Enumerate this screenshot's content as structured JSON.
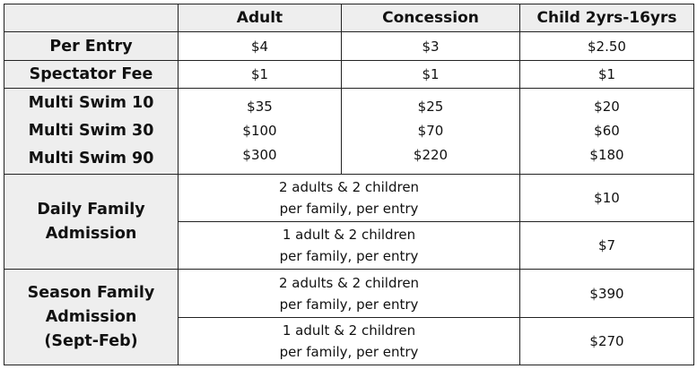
{
  "header": {
    "corner": "",
    "columns": [
      "Adult",
      "Concession",
      "Child 2yrs-16yrs"
    ]
  },
  "rows": {
    "per_entry": {
      "label": "Per Entry",
      "adult": "$4",
      "concession": "$3",
      "child": "$2.50"
    },
    "spectator": {
      "label": "Spectator Fee",
      "adult": "$1",
      "concession": "$1",
      "child": "$1"
    },
    "multi": {
      "labels": [
        "Multi Swim 10",
        "Multi Swim 30",
        "Multi Swim 90"
      ],
      "adult": [
        "$35",
        "$100",
        "$300"
      ],
      "concession": [
        "$25",
        "$70",
        "$220"
      ],
      "child": [
        "$20",
        "$60",
        "$180"
      ]
    },
    "daily_family": {
      "label_lines": [
        "Daily Family",
        "Admission"
      ],
      "options": [
        {
          "lines": [
            "2 adults & 2 children",
            "per family, per entry"
          ],
          "price": "$10"
        },
        {
          "lines": [
            "1 adult & 2 children",
            "per family, per entry"
          ],
          "price": "$7"
        }
      ]
    },
    "season_family": {
      "label_lines": [
        "Season Family",
        "Admission",
        "(Sept-Feb)"
      ],
      "options": [
        {
          "lines": [
            "2 adults & 2 children",
            "per family, per entry"
          ],
          "price": "$390"
        },
        {
          "lines": [
            "1 adult & 2 children",
            "per family, per entry"
          ],
          "price": "$270"
        }
      ]
    }
  }
}
